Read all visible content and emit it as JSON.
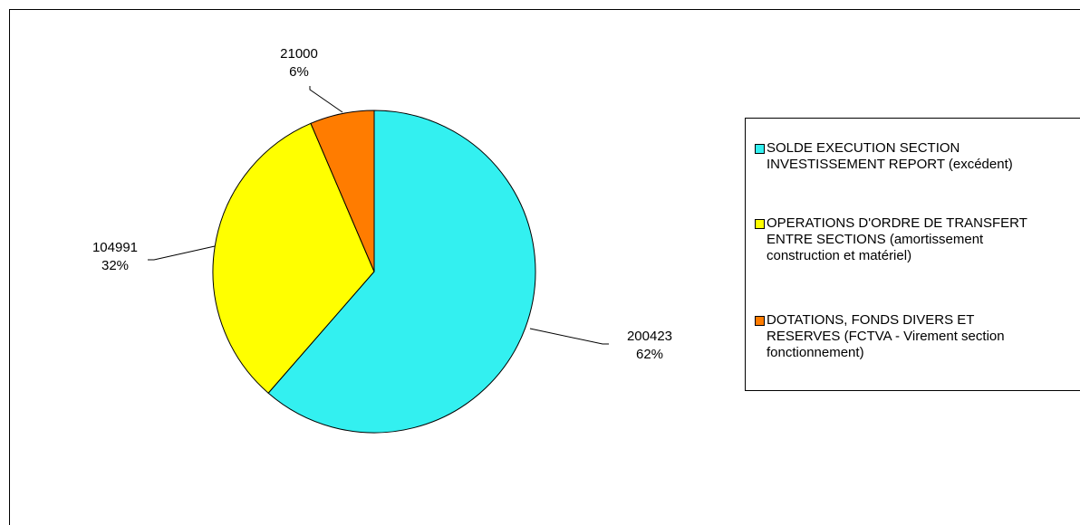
{
  "chart_data": {
    "type": "pie",
    "title": "",
    "legend_position": "right",
    "slices": [
      {
        "name": "SOLDE EXECUTION SECTION\nINVESTISSEMENT REPORT (excédent)",
        "value": 200423,
        "percent_label": "62%",
        "color": "#33f0f0"
      },
      {
        "name": "OPERATIONS D'ORDRE DE TRANSFERT\nENTRE SECTIONS (amortissement\nconstruction et matériel)",
        "value": 104991,
        "percent_label": "32%",
        "color": "#ffff00"
      },
      {
        "name": "DOTATIONS, FONDS DIVERS ET\nRESERVES (FCTVA - Virement section\nfonctionnement)",
        "value": 21000,
        "percent_label": "6%",
        "color": "#ff7c00"
      }
    ]
  }
}
